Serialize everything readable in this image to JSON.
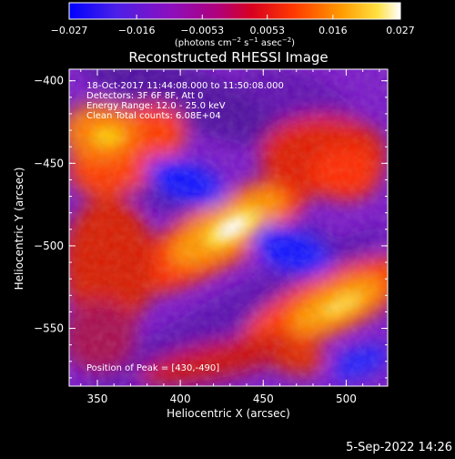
{
  "colorbar": {
    "ticks": [
      "−0.027",
      "−0.016",
      "−0.0053",
      "0.0053",
      "0.016",
      "0.027"
    ],
    "tick_values": [
      -0.027,
      -0.016,
      -0.0053,
      0.0053,
      0.016,
      0.027
    ],
    "range": [
      -0.027,
      0.027
    ],
    "units_prefix": "(photons cm",
    "units_exp1": "−2",
    "units_mid": " s",
    "units_exp2": "−1",
    "units_mid2": " asec",
    "units_exp3": "−2",
    "units_suffix": ")",
    "colors": [
      "#0000ff",
      "#5a1ee6",
      "#9010b4",
      "#c40040",
      "#ff3000",
      "#ff8a00",
      "#ffd000",
      "#ffffff"
    ]
  },
  "plot": {
    "title": "Reconstructed RHESSI Image",
    "xlabel": "Heliocentric X (arcsec)",
    "ylabel": "Heliocentric Y (arcsec)",
    "xticks": [
      {
        "label": "350",
        "value": 350
      },
      {
        "label": "400",
        "value": 400
      },
      {
        "label": "450",
        "value": 450
      },
      {
        "label": "500",
        "value": 500
      }
    ],
    "yticks": [
      {
        "label": "−400",
        "value": -400
      },
      {
        "label": "−450",
        "value": -450
      },
      {
        "label": "−500",
        "value": -500
      },
      {
        "label": "−550",
        "value": -550
      }
    ],
    "xlim": [
      333,
      525
    ],
    "ylim": [
      -393,
      -585
    ],
    "info": [
      "18-Oct-2017 11:44:08.000 to 11:50:08.000",
      "Detectors: 3F 6F 8F, Att 0",
      "Energy Range: 12.0 - 25.0 keV",
      "Clean     Total counts: 6.08E+04"
    ],
    "peak_label": "Position of Peak = [430,-490]",
    "peak": [
      430,
      -490
    ]
  },
  "footer": {
    "timestamp": "5-Sep-2022 14:26"
  }
}
